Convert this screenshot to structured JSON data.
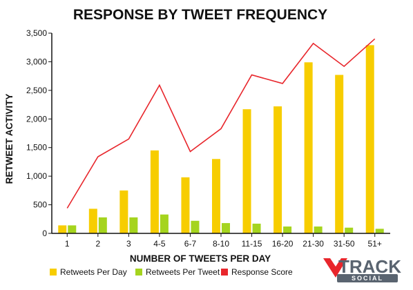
{
  "chart_data": {
    "type": "bar",
    "title": "RESPONSE BY TWEET FREQUENCY",
    "xlabel": "NUMBER OF TWEETS PER DAY",
    "ylabel": "RETWEET ACTIVITY",
    "ylim": [
      0,
      3500
    ],
    "yticks": [
      "0",
      "500",
      "1,000",
      "1,500",
      "2,000",
      "2,500",
      "3,000",
      "3,500"
    ],
    "categories": [
      "1",
      "2",
      "3",
      "4-5",
      "6-7",
      "8-10",
      "11-15",
      "16-20",
      "21-30",
      "31-50",
      "51+"
    ],
    "series": [
      {
        "name": "Retweets Per Day",
        "kind": "bar",
        "color": "#f7cd00",
        "values": [
          140,
          430,
          750,
          1450,
          980,
          1300,
          2170,
          2220,
          2990,
          2770,
          3290
        ]
      },
      {
        "name": "Retweets Per Tweet",
        "kind": "bar",
        "color": "#a5d41e",
        "values": [
          140,
          280,
          280,
          330,
          220,
          180,
          170,
          120,
          120,
          100,
          80
        ]
      },
      {
        "name": "Response Score",
        "kind": "line",
        "color": "#e8262c",
        "values": [
          440,
          1340,
          1650,
          2590,
          1430,
          1830,
          2770,
          2620,
          3320,
          2920,
          3400
        ]
      }
    ],
    "grid": false,
    "legend_position": "bottom"
  },
  "logo": {
    "main_text": "TRACK",
    "sub_text": "SOCIAL",
    "colors": {
      "mark": "#e8262c",
      "text": "#5a6470",
      "band": "#5a6470"
    }
  }
}
